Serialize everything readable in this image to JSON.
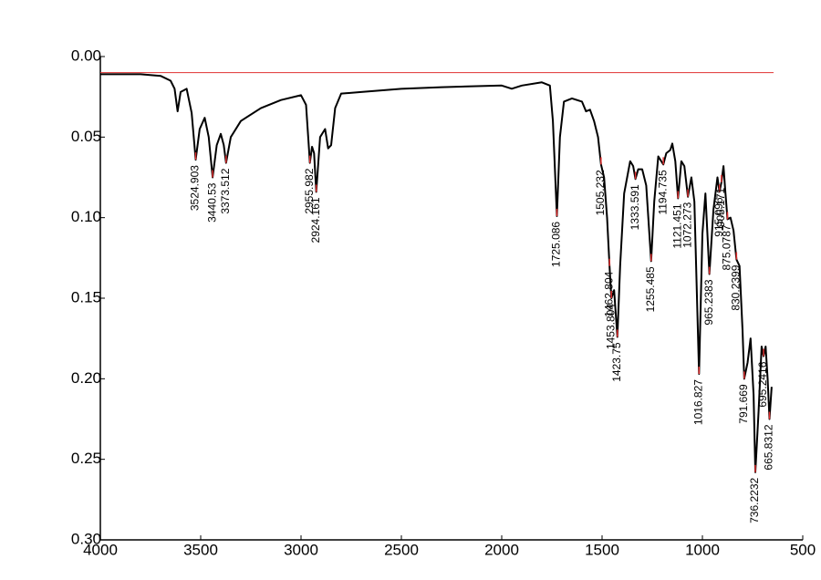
{
  "chart_data": {
    "type": "line",
    "xlim": [
      4000,
      500
    ],
    "ylim": [
      0.0,
      0.3
    ],
    "xticks": [
      4000,
      3500,
      3000,
      2500,
      2000,
      1500,
      1000,
      500
    ],
    "yticks": [
      {
        "value": 0.0,
        "label": "0.00"
      },
      {
        "value": 0.05,
        "label": "0.05"
      },
      {
        "value": 0.1,
        "label": "0.10"
      },
      {
        "value": 0.15,
        "label": "0.15"
      },
      {
        "value": 0.2,
        "label": "0.20"
      },
      {
        "value": 0.25,
        "label": "0.25"
      },
      {
        "value": 0.3,
        "label": "0.30"
      }
    ],
    "reference_line": {
      "value": 0.01,
      "color": "#e03030"
    },
    "spectrum": {
      "color": "#000000",
      "x": [
        4000,
        3800,
        3700,
        3650,
        3630,
        3615,
        3600,
        3570,
        3545,
        3524.903,
        3505,
        3480,
        3460,
        3440.53,
        3420,
        3400,
        3385,
        3373.512,
        3350,
        3300,
        3200,
        3100,
        3000,
        2975,
        2960,
        2955.982,
        2945,
        2935,
        2924.161,
        2905,
        2880,
        2865,
        2850,
        2830,
        2800,
        2700,
        2500,
        2300,
        2000,
        1950,
        1900,
        1800,
        1760,
        1745,
        1725.086,
        1710,
        1690,
        1650,
        1600,
        1580,
        1560,
        1540,
        1520,
        1505.232,
        1490,
        1475,
        1462.804,
        1453.804,
        1440,
        1423.75,
        1410,
        1390,
        1360,
        1345,
        1333.591,
        1320,
        1300,
        1280,
        1255.485,
        1240,
        1220,
        1194.735,
        1180,
        1160,
        1150,
        1135,
        1121.451,
        1105,
        1090,
        1072.273,
        1055,
        1040,
        1016.827,
        1000,
        985,
        965.2383,
        945,
        925,
        915.096,
        905.171,
        895,
        885,
        875.0787,
        860,
        845,
        830.2399,
        815,
        800,
        791.669,
        775,
        760,
        745,
        736.2232,
        720,
        705,
        695.2416,
        685,
        675,
        665.8312,
        655
      ],
      "y": [
        0.011,
        0.011,
        0.012,
        0.015,
        0.02,
        0.034,
        0.022,
        0.02,
        0.035,
        0.064,
        0.045,
        0.038,
        0.05,
        0.075,
        0.055,
        0.048,
        0.055,
        0.066,
        0.05,
        0.04,
        0.032,
        0.027,
        0.024,
        0.03,
        0.058,
        0.066,
        0.056,
        0.06,
        0.084,
        0.05,
        0.045,
        0.057,
        0.055,
        0.032,
        0.023,
        0.022,
        0.02,
        0.019,
        0.018,
        0.02,
        0.018,
        0.016,
        0.018,
        0.04,
        0.099,
        0.05,
        0.028,
        0.026,
        0.028,
        0.034,
        0.033,
        0.04,
        0.05,
        0.067,
        0.075,
        0.1,
        0.13,
        0.15,
        0.145,
        0.174,
        0.13,
        0.085,
        0.065,
        0.068,
        0.076,
        0.07,
        0.07,
        0.08,
        0.127,
        0.09,
        0.062,
        0.067,
        0.06,
        0.058,
        0.054,
        0.065,
        0.088,
        0.065,
        0.068,
        0.087,
        0.075,
        0.09,
        0.197,
        0.11,
        0.085,
        0.135,
        0.095,
        0.075,
        0.084,
        0.078,
        0.068,
        0.085,
        0.101,
        0.1,
        0.108,
        0.126,
        0.13,
        0.17,
        0.2,
        0.19,
        0.175,
        0.21,
        0.258,
        0.22,
        0.18,
        0.186,
        0.18,
        0.2,
        0.225,
        0.205
      ]
    },
    "peaks": {
      "color": "#e03030",
      "x": [
        3524.903,
        3440.53,
        3373.512,
        2955.982,
        2924.161,
        1725.086,
        1505.232,
        1462.804,
        1453.804,
        1423.75,
        1333.591,
        1255.485,
        1194.735,
        1121.451,
        1072.273,
        1016.827,
        965.2383,
        915.096,
        905.171,
        875.0787,
        830.2399,
        791.669,
        736.2232,
        695.2416,
        665.8312
      ],
      "y": [
        0.064,
        0.075,
        0.066,
        0.066,
        0.084,
        0.099,
        0.067,
        0.13,
        0.15,
        0.174,
        0.076,
        0.127,
        0.067,
        0.088,
        0.087,
        0.197,
        0.135,
        0.084,
        0.078,
        0.101,
        0.126,
        0.2,
        0.258,
        0.186,
        0.225
      ]
    }
  }
}
